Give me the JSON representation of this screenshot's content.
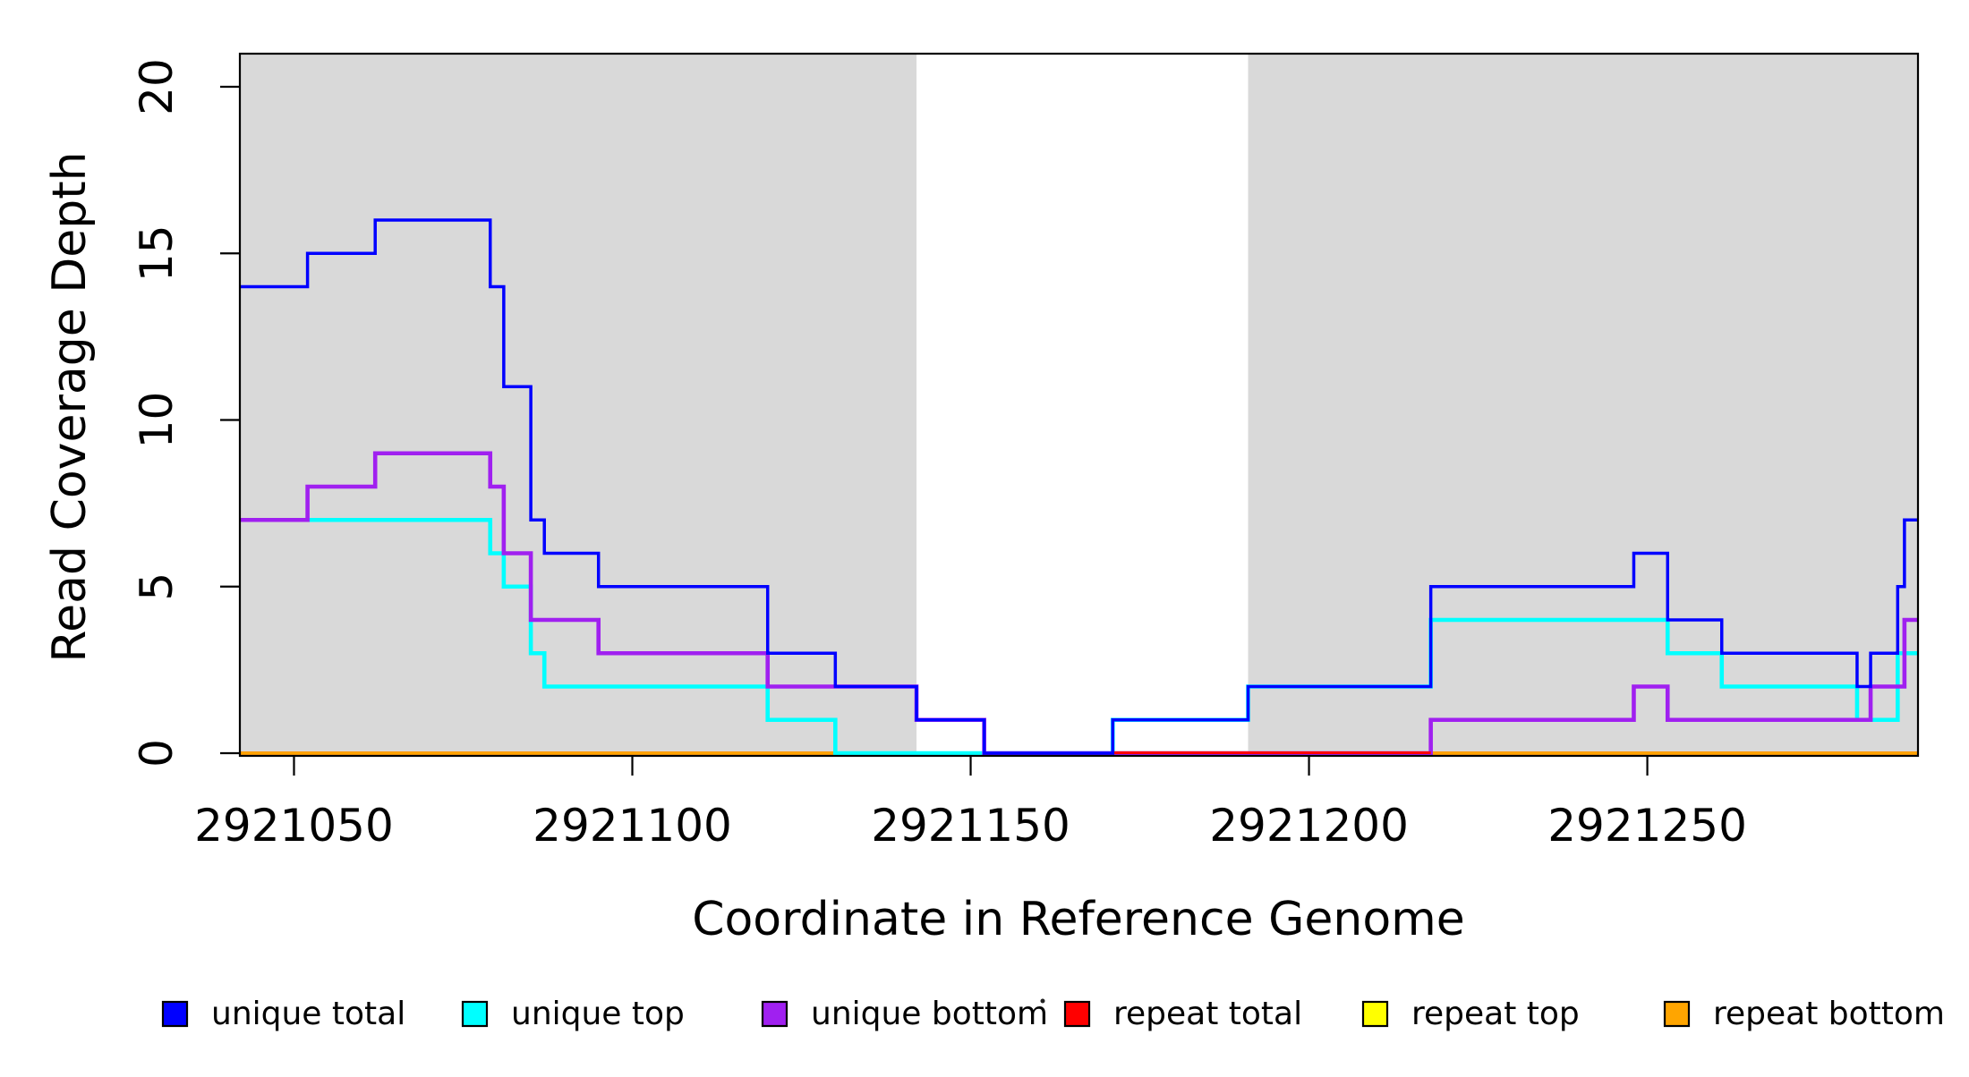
{
  "chart_data": {
    "type": "line",
    "subtype": "step-coverage-plot",
    "title": "",
    "xlabel": "Coordinate in Reference Genome",
    "ylabel": "Read Coverage Depth",
    "x_range": [
      2921042,
      2921290
    ],
    "y_range": [
      0,
      21
    ],
    "grid": false,
    "x_ticks": [
      2921050,
      2921100,
      2921150,
      2921200,
      2921250
    ],
    "y_ticks": [
      0,
      5,
      10,
      15,
      20
    ],
    "shade_color": "#d9d9d9",
    "shaded_regions": [
      {
        "name": "left-gray-region",
        "start": 2921042,
        "end": 2921142
      },
      {
        "name": "right-gray-region",
        "start": 2921191,
        "end": 2921290
      }
    ],
    "series": [
      {
        "name": "unique total",
        "color": "#0000ff",
        "steps": [
          [
            2921042,
            14
          ],
          [
            2921052,
            15
          ],
          [
            2921062,
            16
          ],
          [
            2921079,
            14
          ],
          [
            2921081,
            11
          ],
          [
            2921085,
            7
          ],
          [
            2921087,
            6
          ],
          [
            2921095,
            5
          ],
          [
            2921120,
            3
          ],
          [
            2921130,
            2
          ],
          [
            2921142,
            1
          ],
          [
            2921152,
            0
          ],
          [
            2921171,
            1
          ],
          [
            2921191,
            2
          ],
          [
            2921218,
            5
          ],
          [
            2921248,
            6
          ],
          [
            2921253,
            4
          ],
          [
            2921261,
            3
          ],
          [
            2921281,
            2
          ],
          [
            2921283,
            3
          ],
          [
            2921287,
            5
          ],
          [
            2921288,
            7
          ],
          [
            2921290,
            7
          ]
        ]
      },
      {
        "name": "unique top",
        "color": "#00ffff",
        "steps": [
          [
            2921042,
            7
          ],
          [
            2921079,
            6
          ],
          [
            2921081,
            5
          ],
          [
            2921085,
            3
          ],
          [
            2921087,
            2
          ],
          [
            2921120,
            1
          ],
          [
            2921130,
            0
          ],
          [
            2921171,
            1
          ],
          [
            2921191,
            2
          ],
          [
            2921218,
            4
          ],
          [
            2921253,
            3
          ],
          [
            2921261,
            2
          ],
          [
            2921281,
            1
          ],
          [
            2921287,
            3
          ],
          [
            2921290,
            3
          ]
        ]
      },
      {
        "name": "unique bottom",
        "color": "#a020f0",
        "steps": [
          [
            2921042,
            7
          ],
          [
            2921052,
            8
          ],
          [
            2921062,
            9
          ],
          [
            2921079,
            8
          ],
          [
            2921081,
            6
          ],
          [
            2921085,
            4
          ],
          [
            2921095,
            3
          ],
          [
            2921120,
            2
          ],
          [
            2921142,
            1
          ],
          [
            2921152,
            0
          ],
          [
            2921218,
            1
          ],
          [
            2921248,
            2
          ],
          [
            2921253,
            1
          ],
          [
            2921283,
            2
          ],
          [
            2921288,
            4
          ],
          [
            2921290,
            4
          ]
        ]
      },
      {
        "name": "repeat total",
        "color": "#ff0000",
        "steps": [
          [
            2921042,
            0
          ],
          [
            2921290,
            0
          ]
        ]
      },
      {
        "name": "repeat top",
        "color": "#ffff00",
        "steps": [
          [
            2921042,
            0
          ],
          [
            2921290,
            0
          ]
        ]
      },
      {
        "name": "repeat bottom",
        "color": "#ffa500",
        "steps": [
          [
            2921042,
            0
          ],
          [
            2921290,
            0
          ]
        ]
      }
    ],
    "baseline_overlay": {
      "name": "repeat total visible segment",
      "color": "#ff0000",
      "start": 2921171,
      "end": 2921218,
      "value": 0
    },
    "legend": {
      "position": "bottom",
      "entries": [
        "unique total",
        "unique top",
        "unique bottom",
        "repeat total",
        "repeat top",
        "repeat bottom"
      ],
      "stray_dot": "·"
    }
  }
}
